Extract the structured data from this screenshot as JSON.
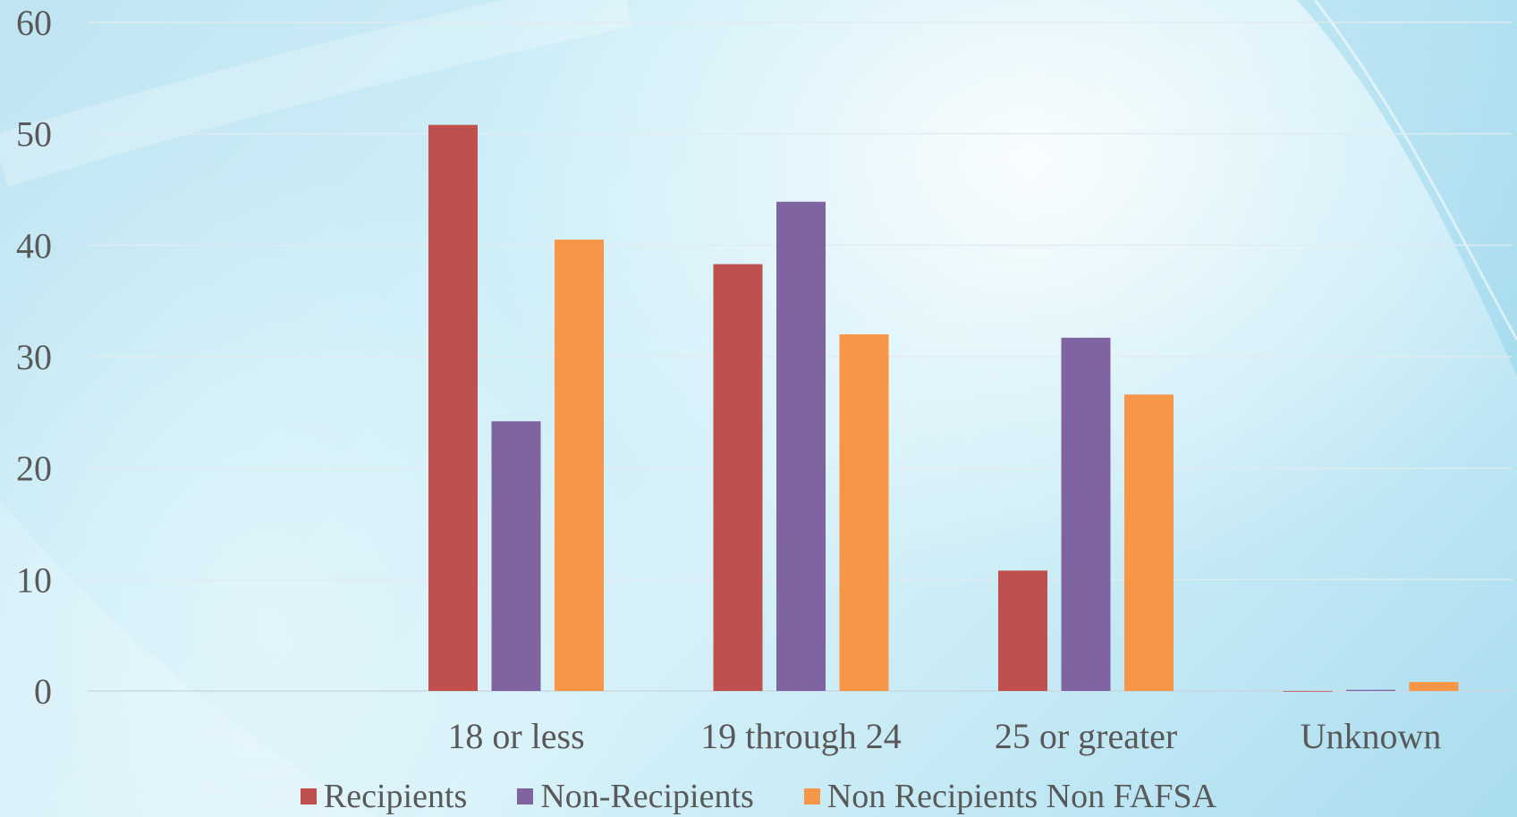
{
  "chart_data": {
    "type": "bar",
    "categories": [
      "18 or less",
      "19 through 24",
      "25 or greater",
      "Unknown"
    ],
    "series": [
      {
        "name": "Recipients",
        "color": "#c0504d",
        "values": [
          50.8,
          38.3,
          10.8,
          0
        ]
      },
      {
        "name": "Non-Recipients",
        "color": "#8064a2",
        "values": [
          24.2,
          43.9,
          31.7,
          0.1
        ]
      },
      {
        "name": "Non Recipients Non FAFSA",
        "color": "#f79646",
        "values": [
          40.5,
          32.0,
          26.6,
          0.8
        ]
      }
    ],
    "ylim": [
      0,
      60
    ],
    "yticks": [
      "0",
      "10",
      "20",
      "30",
      "40",
      "50",
      "60"
    ],
    "grid": true,
    "legend_position": "bottom",
    "title": "",
    "xlabel": "",
    "ylabel": ""
  }
}
